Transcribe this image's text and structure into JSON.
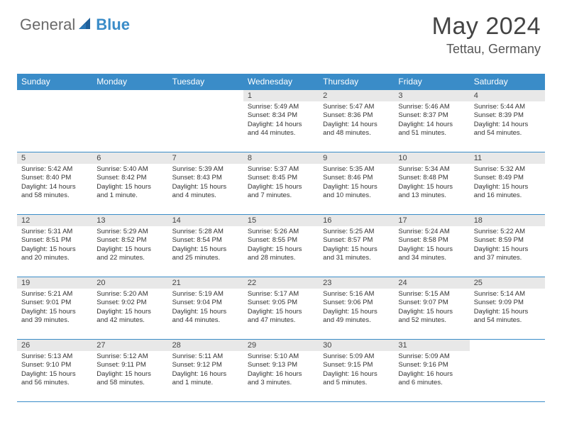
{
  "logo": {
    "part1": "General",
    "part2": "Blue",
    "mark_color": "#1f5f99"
  },
  "header": {
    "title": "May 2024",
    "location": "Tettau, Germany",
    "title_color": "#444444",
    "location_color": "#555555"
  },
  "theme": {
    "header_bg": "#3a8cc8",
    "header_text": "#ffffff",
    "daynum_bg": "#e8e8e8",
    "row_border": "#3a8cc8",
    "body_text": "#333333",
    "font_size_header": 12,
    "font_size_daynum": 11,
    "font_size_body": 9.5
  },
  "calendar": {
    "days_of_week": [
      "Sunday",
      "Monday",
      "Tuesday",
      "Wednesday",
      "Thursday",
      "Friday",
      "Saturday"
    ],
    "weeks": [
      [
        {
          "day": "",
          "lines": []
        },
        {
          "day": "",
          "lines": []
        },
        {
          "day": "",
          "lines": []
        },
        {
          "day": "1",
          "lines": [
            "Sunrise: 5:49 AM",
            "Sunset: 8:34 PM",
            "Daylight: 14 hours",
            "and 44 minutes."
          ]
        },
        {
          "day": "2",
          "lines": [
            "Sunrise: 5:47 AM",
            "Sunset: 8:36 PM",
            "Daylight: 14 hours",
            "and 48 minutes."
          ]
        },
        {
          "day": "3",
          "lines": [
            "Sunrise: 5:46 AM",
            "Sunset: 8:37 PM",
            "Daylight: 14 hours",
            "and 51 minutes."
          ]
        },
        {
          "day": "4",
          "lines": [
            "Sunrise: 5:44 AM",
            "Sunset: 8:39 PM",
            "Daylight: 14 hours",
            "and 54 minutes."
          ]
        }
      ],
      [
        {
          "day": "5",
          "lines": [
            "Sunrise: 5:42 AM",
            "Sunset: 8:40 PM",
            "Daylight: 14 hours",
            "and 58 minutes."
          ]
        },
        {
          "day": "6",
          "lines": [
            "Sunrise: 5:40 AM",
            "Sunset: 8:42 PM",
            "Daylight: 15 hours",
            "and 1 minute."
          ]
        },
        {
          "day": "7",
          "lines": [
            "Sunrise: 5:39 AM",
            "Sunset: 8:43 PM",
            "Daylight: 15 hours",
            "and 4 minutes."
          ]
        },
        {
          "day": "8",
          "lines": [
            "Sunrise: 5:37 AM",
            "Sunset: 8:45 PM",
            "Daylight: 15 hours",
            "and 7 minutes."
          ]
        },
        {
          "day": "9",
          "lines": [
            "Sunrise: 5:35 AM",
            "Sunset: 8:46 PM",
            "Daylight: 15 hours",
            "and 10 minutes."
          ]
        },
        {
          "day": "10",
          "lines": [
            "Sunrise: 5:34 AM",
            "Sunset: 8:48 PM",
            "Daylight: 15 hours",
            "and 13 minutes."
          ]
        },
        {
          "day": "11",
          "lines": [
            "Sunrise: 5:32 AM",
            "Sunset: 8:49 PM",
            "Daylight: 15 hours",
            "and 16 minutes."
          ]
        }
      ],
      [
        {
          "day": "12",
          "lines": [
            "Sunrise: 5:31 AM",
            "Sunset: 8:51 PM",
            "Daylight: 15 hours",
            "and 20 minutes."
          ]
        },
        {
          "day": "13",
          "lines": [
            "Sunrise: 5:29 AM",
            "Sunset: 8:52 PM",
            "Daylight: 15 hours",
            "and 22 minutes."
          ]
        },
        {
          "day": "14",
          "lines": [
            "Sunrise: 5:28 AM",
            "Sunset: 8:54 PM",
            "Daylight: 15 hours",
            "and 25 minutes."
          ]
        },
        {
          "day": "15",
          "lines": [
            "Sunrise: 5:26 AM",
            "Sunset: 8:55 PM",
            "Daylight: 15 hours",
            "and 28 minutes."
          ]
        },
        {
          "day": "16",
          "lines": [
            "Sunrise: 5:25 AM",
            "Sunset: 8:57 PM",
            "Daylight: 15 hours",
            "and 31 minutes."
          ]
        },
        {
          "day": "17",
          "lines": [
            "Sunrise: 5:24 AM",
            "Sunset: 8:58 PM",
            "Daylight: 15 hours",
            "and 34 minutes."
          ]
        },
        {
          "day": "18",
          "lines": [
            "Sunrise: 5:22 AM",
            "Sunset: 8:59 PM",
            "Daylight: 15 hours",
            "and 37 minutes."
          ]
        }
      ],
      [
        {
          "day": "19",
          "lines": [
            "Sunrise: 5:21 AM",
            "Sunset: 9:01 PM",
            "Daylight: 15 hours",
            "and 39 minutes."
          ]
        },
        {
          "day": "20",
          "lines": [
            "Sunrise: 5:20 AM",
            "Sunset: 9:02 PM",
            "Daylight: 15 hours",
            "and 42 minutes."
          ]
        },
        {
          "day": "21",
          "lines": [
            "Sunrise: 5:19 AM",
            "Sunset: 9:04 PM",
            "Daylight: 15 hours",
            "and 44 minutes."
          ]
        },
        {
          "day": "22",
          "lines": [
            "Sunrise: 5:17 AM",
            "Sunset: 9:05 PM",
            "Daylight: 15 hours",
            "and 47 minutes."
          ]
        },
        {
          "day": "23",
          "lines": [
            "Sunrise: 5:16 AM",
            "Sunset: 9:06 PM",
            "Daylight: 15 hours",
            "and 49 minutes."
          ]
        },
        {
          "day": "24",
          "lines": [
            "Sunrise: 5:15 AM",
            "Sunset: 9:07 PM",
            "Daylight: 15 hours",
            "and 52 minutes."
          ]
        },
        {
          "day": "25",
          "lines": [
            "Sunrise: 5:14 AM",
            "Sunset: 9:09 PM",
            "Daylight: 15 hours",
            "and 54 minutes."
          ]
        }
      ],
      [
        {
          "day": "26",
          "lines": [
            "Sunrise: 5:13 AM",
            "Sunset: 9:10 PM",
            "Daylight: 15 hours",
            "and 56 minutes."
          ]
        },
        {
          "day": "27",
          "lines": [
            "Sunrise: 5:12 AM",
            "Sunset: 9:11 PM",
            "Daylight: 15 hours",
            "and 58 minutes."
          ]
        },
        {
          "day": "28",
          "lines": [
            "Sunrise: 5:11 AM",
            "Sunset: 9:12 PM",
            "Daylight: 16 hours",
            "and 1 minute."
          ]
        },
        {
          "day": "29",
          "lines": [
            "Sunrise: 5:10 AM",
            "Sunset: 9:13 PM",
            "Daylight: 16 hours",
            "and 3 minutes."
          ]
        },
        {
          "day": "30",
          "lines": [
            "Sunrise: 5:09 AM",
            "Sunset: 9:15 PM",
            "Daylight: 16 hours",
            "and 5 minutes."
          ]
        },
        {
          "day": "31",
          "lines": [
            "Sunrise: 5:09 AM",
            "Sunset: 9:16 PM",
            "Daylight: 16 hours",
            "and 6 minutes."
          ]
        },
        {
          "day": "",
          "lines": []
        }
      ]
    ]
  }
}
